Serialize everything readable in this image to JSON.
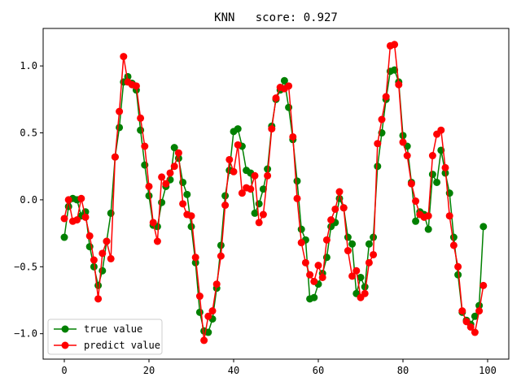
{
  "chart_data": {
    "type": "line",
    "title": "KNN   score: 0.927",
    "xlabel": "",
    "ylabel": "",
    "xlim": [
      -5,
      105
    ],
    "ylim": [
      -1.19,
      1.28
    ],
    "xticks": [
      0,
      20,
      40,
      60,
      80,
      100
    ],
    "yticks": [
      -1.0,
      -0.5,
      0.0,
      0.5,
      1.0
    ],
    "xtick_labels": [
      "0",
      "20",
      "40",
      "60",
      "80",
      "100"
    ],
    "ytick_labels": [
      "−1.0",
      "−0.5",
      "0.0",
      "0.5",
      "1.0"
    ],
    "grid": false,
    "legend_position": "lower-left",
    "markers": "circle",
    "series": [
      {
        "name": "true value",
        "color": "#008000",
        "values": [
          -0.28,
          -0.05,
          0.01,
          0.0,
          -0.12,
          -0.09,
          -0.35,
          -0.5,
          -0.64,
          -0.53,
          -0.31,
          -0.1,
          0.32,
          0.54,
          0.88,
          0.92,
          0.87,
          0.82,
          0.52,
          0.26,
          0.03,
          -0.19,
          -0.2,
          -0.02,
          0.1,
          0.15,
          0.39,
          0.31,
          0.13,
          0.04,
          -0.2,
          -0.47,
          -0.84,
          -0.98,
          -0.99,
          -0.89,
          -0.66,
          -0.34,
          0.03,
          0.22,
          0.51,
          0.53,
          0.4,
          0.22,
          0.2,
          -0.1,
          -0.03,
          0.08,
          0.23,
          0.55,
          0.75,
          0.82,
          0.89,
          0.69,
          0.45,
          0.14,
          -0.22,
          -0.3,
          -0.74,
          -0.73,
          -0.63,
          -0.55,
          -0.43,
          -0.2,
          -0.17,
          0.01,
          -0.06,
          -0.28,
          -0.33,
          -0.7,
          -0.58,
          -0.65,
          -0.33,
          -0.28,
          0.25,
          0.5,
          0.75,
          0.96,
          0.97,
          0.88,
          0.48,
          0.4,
          0.13,
          -0.16,
          -0.09,
          -0.11,
          -0.22,
          0.19,
          0.13,
          0.37,
          0.2,
          0.05,
          -0.28,
          -0.56,
          -0.84,
          -0.9,
          -0.93,
          -0.87,
          -0.79,
          -0.2
        ]
      },
      {
        "name": "predict value",
        "color": "#ff0000",
        "values": [
          -0.14,
          0.0,
          -0.16,
          -0.15,
          0.01,
          -0.13,
          -0.27,
          -0.45,
          -0.74,
          -0.4,
          -0.31,
          -0.44,
          0.32,
          0.66,
          1.07,
          0.88,
          0.86,
          0.85,
          0.61,
          0.4,
          0.1,
          -0.17,
          -0.31,
          0.17,
          0.12,
          0.2,
          0.25,
          0.35,
          -0.03,
          -0.11,
          -0.12,
          -0.43,
          -0.72,
          -1.05,
          -0.87,
          -0.83,
          -0.63,
          -0.42,
          -0.04,
          0.3,
          0.21,
          0.41,
          0.05,
          0.09,
          0.08,
          0.18,
          -0.17,
          -0.11,
          0.18,
          0.53,
          0.76,
          0.84,
          0.83,
          0.85,
          0.47,
          0.01,
          -0.32,
          -0.47,
          -0.56,
          -0.61,
          -0.49,
          -0.58,
          -0.3,
          -0.15,
          -0.07,
          0.06,
          -0.06,
          -0.38,
          -0.57,
          -0.53,
          -0.73,
          -0.7,
          -0.47,
          -0.41,
          0.42,
          0.6,
          0.77,
          1.15,
          1.16,
          0.86,
          0.43,
          0.33,
          0.12,
          -0.01,
          -0.11,
          -0.13,
          -0.12,
          0.33,
          0.49,
          0.52,
          0.24,
          -0.12,
          -0.34,
          -0.5,
          -0.83,
          -0.91,
          -0.95,
          -0.99,
          -0.83,
          -0.64
        ]
      }
    ]
  }
}
